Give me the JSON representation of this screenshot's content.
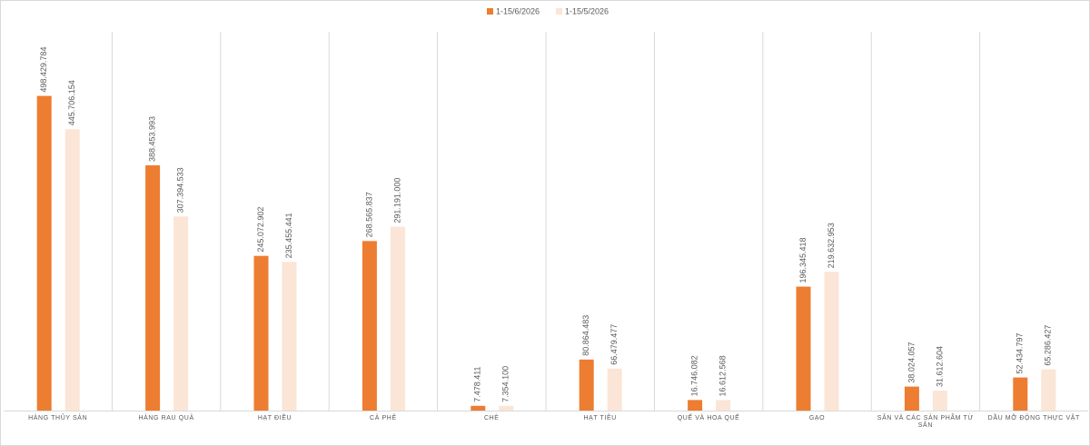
{
  "chart_data": {
    "type": "bar",
    "categories": [
      "HÀNG THỦY SẢN",
      "HÀNG RAU QUẢ",
      "HẠT ĐIỀU",
      "CÀ PHÊ",
      "CHÈ",
      "HẠT TIÊU",
      "QUẾ VÀ HOA QUẾ",
      "GẠO",
      "SẮN VÀ CÁC SẢN PHẨM TỪ SẮN",
      "DẦU MỠ ĐỘNG THỰC VẬT"
    ],
    "series": [
      {
        "name": "1-15/6/2026",
        "color": "#ed7d31",
        "values": [
          498429784,
          388453993,
          245072902,
          268565837,
          7478411,
          80864483,
          16746082,
          196345418,
          38024057,
          52434797
        ],
        "value_labels": [
          "498.429.784",
          "388.453.993",
          "245.072.902",
          "268.565.837",
          "7.478.411",
          "80.864.483",
          "16.746.082",
          "196.345.418",
          "38.024.057",
          "52.434.797"
        ]
      },
      {
        "name": "1-15/5/2026",
        "color": "#fbe5d6",
        "values": [
          445706154,
          307394533,
          235455441,
          291191000,
          7354100,
          66479477,
          16612568,
          219632953,
          31612604,
          65286427
        ],
        "value_labels": [
          "445.706.154",
          "307.394.533",
          "235.455.441",
          "291.191.000",
          "7.354.100",
          "66.479.477",
          "16.612.568",
          "219.632.953",
          "31.612.604",
          "65.286.427"
        ]
      }
    ],
    "ylim": [
      0,
      600000000
    ],
    "legend": "top"
  }
}
